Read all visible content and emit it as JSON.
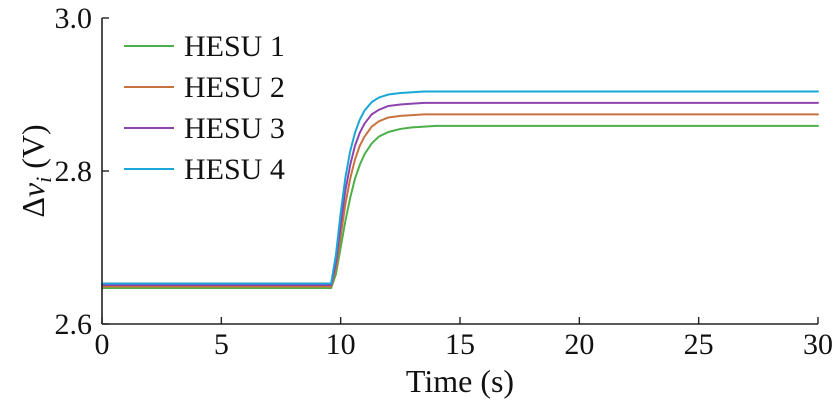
{
  "chart_data": {
    "type": "line",
    "xlabel": "Time (s)",
    "ylabel": {
      "delta": "Δ",
      "var": "v",
      "sub": "i",
      "unit": " (V)"
    },
    "xlim": [
      0,
      30
    ],
    "ylim": [
      2.6,
      3.0
    ],
    "xticks": [
      0,
      5,
      10,
      15,
      20,
      25,
      30
    ],
    "yticks": [
      2.6,
      2.8,
      3.0
    ],
    "xtick_labels": [
      "0",
      "5",
      "10",
      "15",
      "20",
      "25",
      "30"
    ],
    "ytick_labels": [
      "2.6",
      "2.8",
      "3.0"
    ],
    "grid": false,
    "legend_position": "top-left",
    "series": [
      {
        "name": "HESU 1",
        "color": "#4daf4a",
        "x": [
          0,
          9.6,
          9.8,
          10.0,
          10.2,
          10.4,
          10.6,
          10.8,
          11.0,
          11.3,
          11.6,
          12.0,
          12.5,
          13.0,
          13.5,
          14.0,
          15.0,
          30
        ],
        "y": [
          2.647,
          2.647,
          2.665,
          2.7,
          2.735,
          2.765,
          2.79,
          2.808,
          2.822,
          2.836,
          2.845,
          2.851,
          2.855,
          2.857,
          2.858,
          2.859,
          2.859,
          2.859
        ]
      },
      {
        "name": "HESU 2",
        "color": "#c8733f",
        "x": [
          0,
          9.6,
          9.8,
          10.0,
          10.2,
          10.4,
          10.6,
          10.8,
          11.0,
          11.3,
          11.6,
          12.0,
          12.5,
          13.0,
          13.5,
          14.0,
          15.0,
          30
        ],
        "y": [
          2.649,
          2.649,
          2.672,
          2.715,
          2.757,
          2.79,
          2.815,
          2.833,
          2.845,
          2.858,
          2.865,
          2.87,
          2.872,
          2.873,
          2.874,
          2.874,
          2.874,
          2.874
        ]
      },
      {
        "name": "HESU 3",
        "color": "#8e44ad",
        "x": [
          0,
          9.6,
          9.8,
          10.0,
          10.2,
          10.4,
          10.6,
          10.8,
          11.0,
          11.3,
          11.6,
          12.0,
          12.5,
          13.0,
          13.5,
          14.0,
          15.0,
          30
        ],
        "y": [
          2.651,
          2.651,
          2.68,
          2.73,
          2.775,
          2.808,
          2.833,
          2.85,
          2.862,
          2.874,
          2.88,
          2.885,
          2.887,
          2.888,
          2.889,
          2.889,
          2.889,
          2.889
        ]
      },
      {
        "name": "HESU 4",
        "color": "#1aa7d8",
        "x": [
          0,
          9.6,
          9.8,
          10.0,
          10.2,
          10.4,
          10.6,
          10.8,
          11.0,
          11.3,
          11.6,
          12.0,
          12.5,
          13.0,
          13.5,
          14.0,
          15.0,
          30
        ],
        "y": [
          2.653,
          2.653,
          2.69,
          2.745,
          2.792,
          2.826,
          2.85,
          2.867,
          2.879,
          2.89,
          2.896,
          2.9,
          2.902,
          2.903,
          2.904,
          2.904,
          2.904,
          2.904
        ]
      }
    ]
  }
}
